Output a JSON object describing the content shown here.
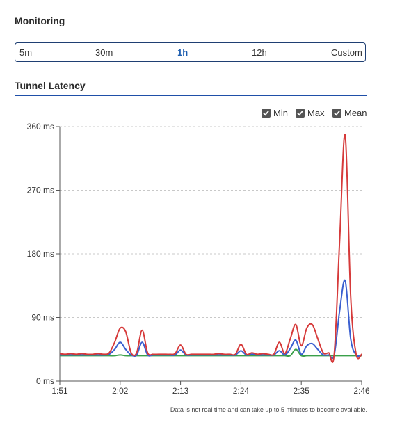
{
  "monitoring": {
    "title": "Monitoring",
    "tabs": [
      {
        "label": "5m",
        "active": false
      },
      {
        "label": "30m",
        "active": false
      },
      {
        "label": "1h",
        "active": true
      },
      {
        "label": "12h",
        "active": false
      },
      {
        "label": "Custom",
        "active": false
      }
    ]
  },
  "latency": {
    "title": "Tunnel Latency",
    "legend": [
      {
        "label": "Min",
        "checked": true
      },
      {
        "label": "Max",
        "checked": true
      },
      {
        "label": "Mean",
        "checked": true
      }
    ],
    "note": "Data is not real time and can take up to 5 minutes to become available."
  },
  "colors": {
    "accent": "#1f5fb0",
    "max": "#d63a3a",
    "mean": "#3a5fd0",
    "min": "#3aa04a"
  },
  "chart_data": {
    "type": "line",
    "xlabel": "",
    "ylabel": "",
    "ylim": [
      0,
      360
    ],
    "xlim": [
      0,
      55
    ],
    "grid": true,
    "legend_placement": "top-right",
    "y_ticks": [
      {
        "value": 0,
        "label": "0 ms"
      },
      {
        "value": 90,
        "label": "90 ms"
      },
      {
        "value": 180,
        "label": "180 ms"
      },
      {
        "value": 270,
        "label": "270 ms"
      },
      {
        "value": 360,
        "label": "360 ms"
      }
    ],
    "x_ticks": [
      {
        "value": 0,
        "label": "1:51"
      },
      {
        "value": 11,
        "label": "2:02"
      },
      {
        "value": 22,
        "label": "2:13"
      },
      {
        "value": 33,
        "label": "2:24"
      },
      {
        "value": 44,
        "label": "2:35"
      },
      {
        "value": 55,
        "label": "2:46"
      }
    ],
    "x": [
      0,
      1,
      2,
      3,
      4,
      5,
      6,
      7,
      8,
      9,
      10,
      11,
      12,
      13,
      14,
      15,
      16,
      17,
      18,
      19,
      20,
      21,
      22,
      23,
      24,
      25,
      26,
      27,
      28,
      29,
      30,
      31,
      32,
      33,
      34,
      35,
      36,
      37,
      38,
      39,
      40,
      41,
      42,
      43,
      44,
      45,
      46,
      47,
      48,
      49,
      50,
      51,
      52,
      53,
      54,
      55
    ],
    "series": [
      {
        "name": "Max",
        "color": "#d63a3a",
        "values": [
          39,
          38,
          39,
          38,
          39,
          38,
          38,
          39,
          38,
          40,
          55,
          75,
          70,
          40,
          40,
          72,
          40,
          38,
          38,
          38,
          38,
          39,
          51,
          38,
          38,
          38,
          38,
          38,
          38,
          39,
          38,
          38,
          38,
          52,
          38,
          40,
          38,
          39,
          38,
          38,
          55,
          39,
          60,
          80,
          50,
          75,
          80,
          60,
          40,
          40,
          38,
          200,
          348,
          120,
          38,
          38
        ]
      },
      {
        "name": "Mean",
        "color": "#3a5fd0",
        "values": [
          37,
          37,
          37,
          37,
          37,
          37,
          37,
          37,
          37,
          38,
          45,
          55,
          45,
          37,
          37,
          55,
          37,
          37,
          37,
          37,
          37,
          37,
          44,
          37,
          37,
          37,
          37,
          37,
          37,
          37,
          37,
          37,
          37,
          43,
          37,
          38,
          37,
          37,
          37,
          37,
          43,
          37,
          46,
          58,
          38,
          50,
          53,
          45,
          37,
          37,
          37,
          100,
          142,
          60,
          37,
          37
        ]
      },
      {
        "name": "Min",
        "color": "#3aa04a",
        "values": [
          36,
          36,
          36,
          36,
          36,
          36,
          36,
          36,
          36,
          36,
          36,
          37,
          36,
          36,
          36,
          36,
          36,
          36,
          36,
          36,
          36,
          36,
          36,
          36,
          36,
          36,
          36,
          36,
          36,
          36,
          36,
          36,
          36,
          36,
          36,
          36,
          36,
          36,
          36,
          36,
          36,
          36,
          36,
          45,
          36,
          36,
          36,
          36,
          36,
          36,
          36,
          36,
          36,
          36,
          36,
          36
        ]
      }
    ]
  }
}
